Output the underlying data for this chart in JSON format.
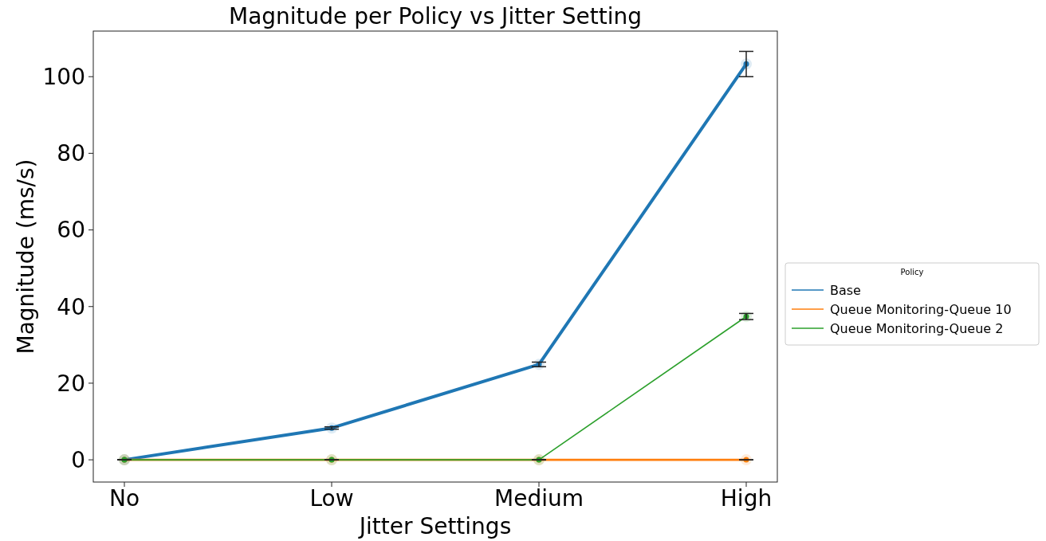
{
  "chart_data": {
    "type": "line",
    "title": "Magnitude per Policy vs Jitter Setting",
    "xlabel": "Jitter Settings",
    "ylabel": "Magnitude (ms/s)",
    "legend_title": "Policy",
    "categories": [
      "No",
      "Low",
      "Medium",
      "High"
    ],
    "series": [
      {
        "name": "Base",
        "color": "#1f77b4",
        "values": [
          0,
          8.3,
          24.9,
          103.3
        ],
        "errors": [
          0,
          0.3,
          0.6,
          3.3
        ]
      },
      {
        "name": "Queue Monitoring-Queue 10",
        "color": "#ff7f0e",
        "values": [
          0,
          0,
          0,
          0
        ],
        "errors": [
          0,
          0,
          0,
          0
        ]
      },
      {
        "name": "Queue Monitoring-Queue 2",
        "color": "#2ca02c",
        "values": [
          0,
          0,
          0,
          37.4
        ],
        "errors": [
          0,
          0,
          0,
          0.8
        ]
      }
    ],
    "ylim": [
      -5.8,
      111.9
    ],
    "yticks": [
      0,
      20,
      40,
      60,
      80,
      100
    ],
    "grid": false,
    "legend": "right",
    "marker": "circle",
    "line_style": "solid"
  }
}
